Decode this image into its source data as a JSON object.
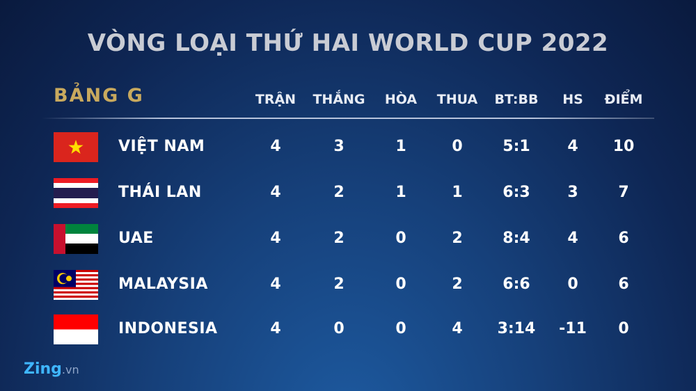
{
  "title": "VÒNG LOẠI THỨ HAI WORLD CUP 2022",
  "group": "BẢNG G",
  "headers": [
    "TRẬN",
    "THẮNG",
    "HÒA",
    "THUA",
    "BT:BB",
    "HS",
    "ĐIỂM"
  ],
  "rows": [
    {
      "team": "VIỆT NAM",
      "flag": "vietnam-flag",
      "stats": [
        "4",
        "3",
        "1",
        "0",
        "5:1",
        "4",
        "10"
      ]
    },
    {
      "team": "THÁI LAN",
      "flag": "thailand-flag",
      "stats": [
        "4",
        "2",
        "1",
        "1",
        "6:3",
        "3",
        "7"
      ]
    },
    {
      "team": "UAE",
      "flag": "uae-flag",
      "stats": [
        "4",
        "2",
        "0",
        "2",
        "8:4",
        "4",
        "6"
      ]
    },
    {
      "team": "MALAYSIA",
      "flag": "malaysia-flag",
      "stats": [
        "4",
        "2",
        "0",
        "2",
        "6:6",
        "0",
        "6"
      ]
    },
    {
      "team": "INDONESIA",
      "flag": "indonesia-flag",
      "stats": [
        "4",
        "0",
        "0",
        "4",
        "3:14",
        "-11",
        "0"
      ]
    }
  ],
  "logo": {
    "brand": "Zing",
    "suffix": ".vn"
  },
  "colors": {
    "group": "#c8a95e",
    "title": "#c9ccd4"
  }
}
